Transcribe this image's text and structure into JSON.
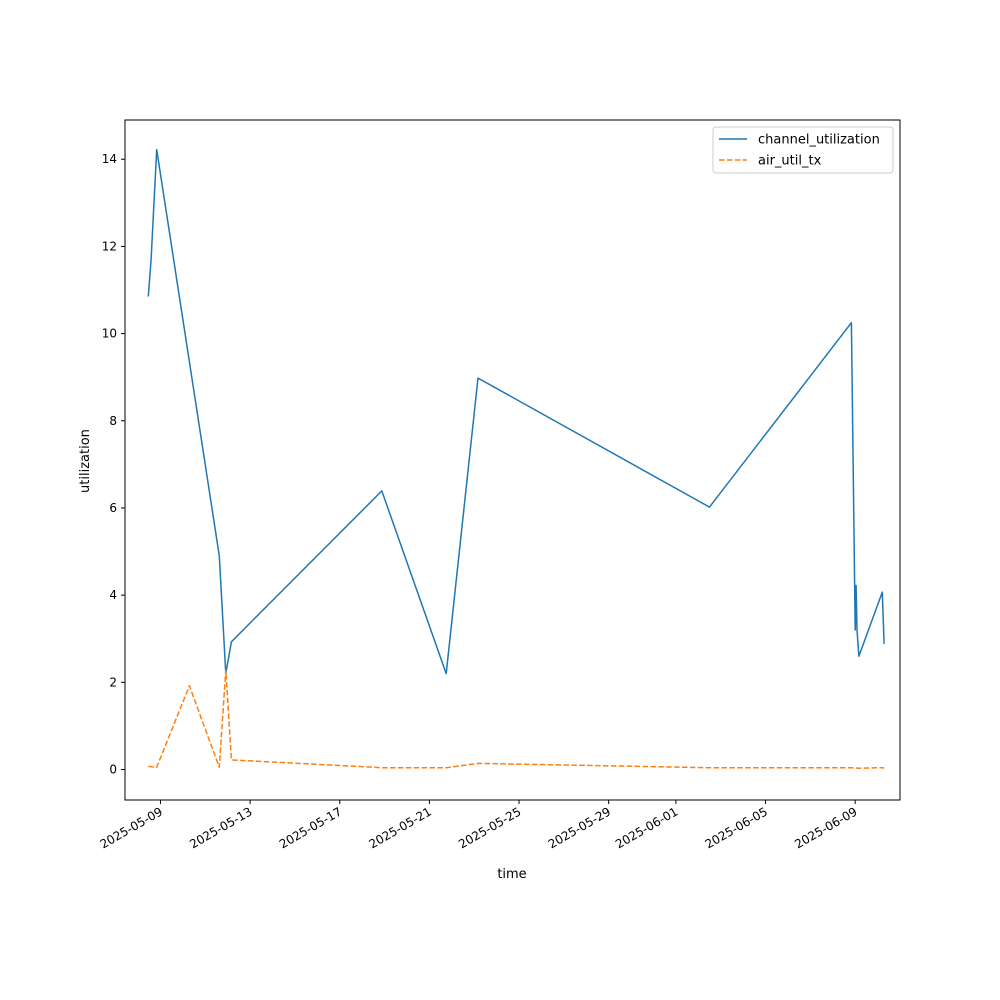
{
  "chart_data": {
    "type": "line",
    "title": "",
    "xlabel": "time",
    "ylabel": "utilization",
    "x_axis_type": "date",
    "xlim": [
      "2025-05-07T10:00",
      "2025-06-11T00:00"
    ],
    "ylim": [
      -0.7,
      14.9
    ],
    "x_tick_labels": [
      "2025-05-09",
      "2025-05-13",
      "2025-05-17",
      "2025-05-21",
      "2025-05-25",
      "2025-05-29",
      "2025-06-01",
      "2025-06-05",
      "2025-06-09"
    ],
    "y_ticks": [
      0,
      2,
      4,
      6,
      8,
      10,
      12,
      14
    ],
    "grid": false,
    "legend_position": "top-right",
    "series": [
      {
        "name": "channel_utilization",
        "color": "#1f77b4",
        "line_style": "solid",
        "points": [
          {
            "x": "2025-05-08T11:00",
            "y": 10.85
          },
          {
            "x": "2025-05-08T14:00",
            "y": 11.7
          },
          {
            "x": "2025-05-08T20:00",
            "y": 14.22
          },
          {
            "x": "2025-05-11T15:00",
            "y": 4.9
          },
          {
            "x": "2025-05-11T22:00",
            "y": 2.2
          },
          {
            "x": "2025-05-12T04:00",
            "y": 2.93
          },
          {
            "x": "2025-05-18T21:00",
            "y": 6.39
          },
          {
            "x": "2025-05-21T18:00",
            "y": 2.2
          },
          {
            "x": "2025-05-23T04:00",
            "y": 8.98
          },
          {
            "x": "2025-06-02T12:00",
            "y": 6.02
          },
          {
            "x": "2025-06-08T20:00",
            "y": 10.25
          },
          {
            "x": "2025-06-09T00:00",
            "y": 3.2
          },
          {
            "x": "2025-06-09T01:00",
            "y": 4.22
          },
          {
            "x": "2025-06-09T02:00",
            "y": 3.2
          },
          {
            "x": "2025-06-09T04:00",
            "y": 2.6
          },
          {
            "x": "2025-06-10T05:00",
            "y": 4.07
          },
          {
            "x": "2025-06-10T07:00",
            "y": 2.88
          }
        ]
      },
      {
        "name": "air_util_tx",
        "color": "#ff7f0e",
        "line_style": "dashed",
        "points": [
          {
            "x": "2025-05-08T11:00",
            "y": 0.07
          },
          {
            "x": "2025-05-08T20:00",
            "y": 0.05
          },
          {
            "x": "2025-05-10T07:00",
            "y": 1.92
          },
          {
            "x": "2025-05-11T15:00",
            "y": 0.05
          },
          {
            "x": "2025-05-11T22:00",
            "y": 2.28
          },
          {
            "x": "2025-05-12T04:00",
            "y": 0.22
          },
          {
            "x": "2025-05-18T21:00",
            "y": 0.04
          },
          {
            "x": "2025-05-21T18:00",
            "y": 0.04
          },
          {
            "x": "2025-05-23T04:00",
            "y": 0.14
          },
          {
            "x": "2025-06-02T12:00",
            "y": 0.04
          },
          {
            "x": "2025-06-08T20:00",
            "y": 0.04
          },
          {
            "x": "2025-06-09T04:00",
            "y": 0.03
          },
          {
            "x": "2025-06-10T05:00",
            "y": 0.04
          },
          {
            "x": "2025-06-10T07:00",
            "y": 0.03
          }
        ]
      }
    ]
  }
}
